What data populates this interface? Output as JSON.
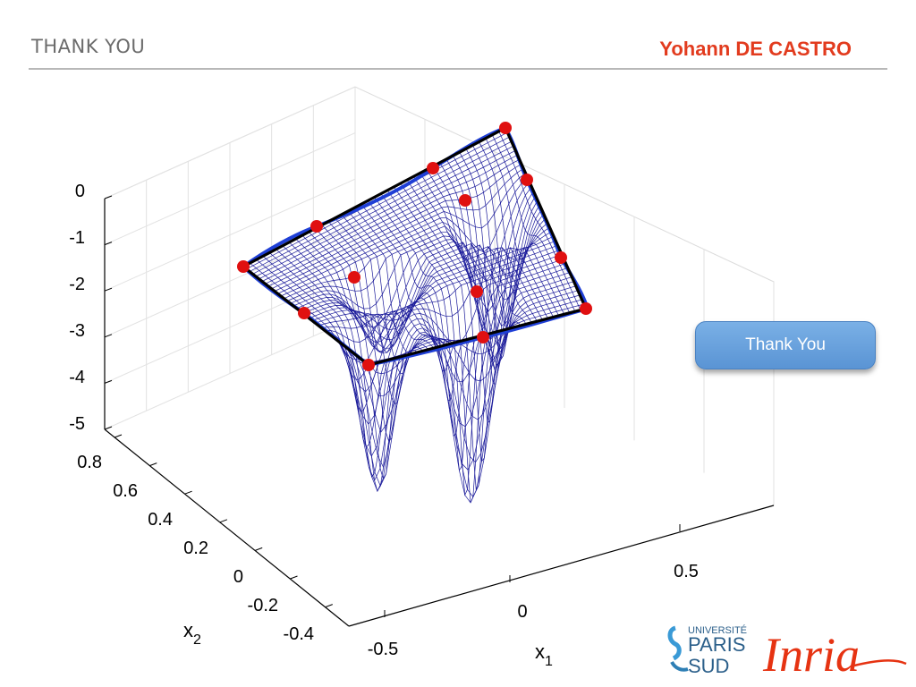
{
  "header": {
    "title": "THANK YOU",
    "author": "Yohann DE CASTRO"
  },
  "button": {
    "label": "Thank You"
  },
  "logos": {
    "university_line1": "UNIVERSITÉ",
    "university_line2": "PARIS",
    "university_line3": "SUD",
    "inria": "Inria"
  },
  "colors": {
    "accent_red": "#e23b1e",
    "mesh": "#1a1a9a",
    "curve": "#1f3fd6",
    "polygon": "#000000",
    "points": "#e01010",
    "button": "#6aa4e0"
  },
  "chart_data": {
    "type": "surface",
    "xlabel": "x",
    "xlabel_sub": "1",
    "ylabel": "x",
    "ylabel_sub": "2",
    "z_ticks": [
      "0",
      "-1",
      "-2",
      "-3",
      "-4",
      "-5"
    ],
    "x_ticks": [
      "-0.5",
      "0",
      "0.5"
    ],
    "y_ticks": [
      "0.8",
      "0.6",
      "0.4",
      "0.2",
      "0",
      "-0.2",
      "-0.4"
    ],
    "zlim": [
      -5,
      0
    ],
    "grid": true
  }
}
